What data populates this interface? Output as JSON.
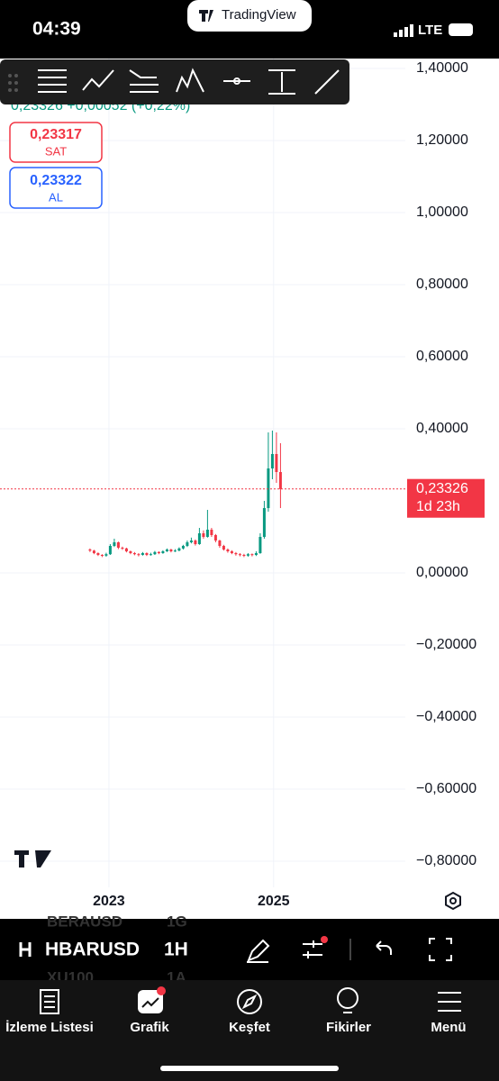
{
  "status_bar": {
    "time": "04:39",
    "app": "TradingView",
    "network": "LTE"
  },
  "quote": "0,23326 +0,00052 (+0,22%)",
  "sell": {
    "price": "0,23317",
    "label": "SAT"
  },
  "buy": {
    "price": "0,23322",
    "label": "AL"
  },
  "chart_data": {
    "type": "candlestick",
    "open": [
      0.065,
      0.062,
      0.055,
      0.05,
      0.048,
      0.052,
      0.075,
      0.085,
      0.07,
      0.068,
      0.06,
      0.055,
      0.052,
      0.05,
      0.055,
      0.05,
      0.052,
      0.058,
      0.055,
      0.06,
      0.065,
      0.06,
      0.062,
      0.068,
      0.075,
      0.085,
      0.09,
      0.08,
      0.11,
      0.1,
      0.12,
      0.105,
      0.09,
      0.075,
      0.065,
      0.06,
      0.055,
      0.052,
      0.05,
      0.048,
      0.052,
      0.05,
      0.055,
      0.1,
      0.18,
      0.29,
      0.33,
      0.28
    ],
    "high": [
      0.068,
      0.064,
      0.057,
      0.052,
      0.056,
      0.08,
      0.095,
      0.087,
      0.073,
      0.07,
      0.062,
      0.058,
      0.055,
      0.058,
      0.057,
      0.056,
      0.061,
      0.06,
      0.063,
      0.068,
      0.067,
      0.066,
      0.071,
      0.078,
      0.09,
      0.098,
      0.093,
      0.125,
      0.118,
      0.175,
      0.125,
      0.108,
      0.092,
      0.078,
      0.068,
      0.063,
      0.058,
      0.055,
      0.053,
      0.055,
      0.054,
      0.06,
      0.11,
      0.2,
      0.39,
      0.395,
      0.39,
      0.36
    ],
    "low": [
      0.058,
      0.052,
      0.047,
      0.044,
      0.045,
      0.05,
      0.072,
      0.066,
      0.064,
      0.057,
      0.052,
      0.049,
      0.046,
      0.048,
      0.047,
      0.048,
      0.05,
      0.052,
      0.053,
      0.058,
      0.057,
      0.058,
      0.06,
      0.065,
      0.072,
      0.082,
      0.076,
      0.078,
      0.095,
      0.098,
      0.1,
      0.085,
      0.07,
      0.062,
      0.056,
      0.052,
      0.048,
      0.046,
      0.044,
      0.045,
      0.046,
      0.047,
      0.053,
      0.095,
      0.17,
      0.26,
      0.25,
      0.18
    ],
    "close": [
      0.062,
      0.055,
      0.05,
      0.048,
      0.052,
      0.075,
      0.085,
      0.07,
      0.068,
      0.06,
      0.055,
      0.052,
      0.05,
      0.055,
      0.05,
      0.052,
      0.058,
      0.055,
      0.06,
      0.065,
      0.06,
      0.062,
      0.068,
      0.075,
      0.085,
      0.09,
      0.08,
      0.11,
      0.1,
      0.12,
      0.105,
      0.09,
      0.075,
      0.065,
      0.06,
      0.055,
      0.052,
      0.05,
      0.048,
      0.052,
      0.05,
      0.055,
      0.1,
      0.18,
      0.29,
      0.33,
      0.28,
      0.233
    ],
    "up_color": "#089981",
    "down_color": "#f23645",
    "xlim": [
      -22.2,
      77.8
    ],
    "xticks": [
      {
        "value": 4.67,
        "label": "2023"
      },
      {
        "value": 45.3,
        "label": "2025"
      }
    ],
    "ylim": [
      -0.96,
      1.4275
    ],
    "yticks": [
      {
        "value": 1.4,
        "label": "1,40000"
      },
      {
        "value": 1.2,
        "label": "1,20000"
      },
      {
        "value": 1.0,
        "label": "1,00000"
      },
      {
        "value": 0.8,
        "label": "0,80000"
      },
      {
        "value": 0.6,
        "label": "0,60000"
      },
      {
        "value": 0.4,
        "label": "0,40000"
      },
      {
        "value": 0.0,
        "label": "0,00000"
      },
      {
        "value": -0.2,
        "label": "−0,20000"
      },
      {
        "value": -0.4,
        "label": "−0,40000"
      },
      {
        "value": -0.6,
        "label": "−0,60000"
      },
      {
        "value": -0.8,
        "label": "−0,80000"
      }
    ],
    "grid": true,
    "last_price": {
      "value": 0.23326,
      "label": "0,23326"
    },
    "last_time": "1d 23h"
  },
  "bottom_bar": {
    "symbol": "HBARUSD",
    "interval": "1H",
    "prev_symbol": "BERAUSD",
    "prev_interval": "1G",
    "next_symbol": "XU100",
    "next_interval": "1A"
  },
  "tabs": [
    "İzleme Listesi",
    "Grafik",
    "Keşfet",
    "Fikirler",
    "Menü"
  ]
}
